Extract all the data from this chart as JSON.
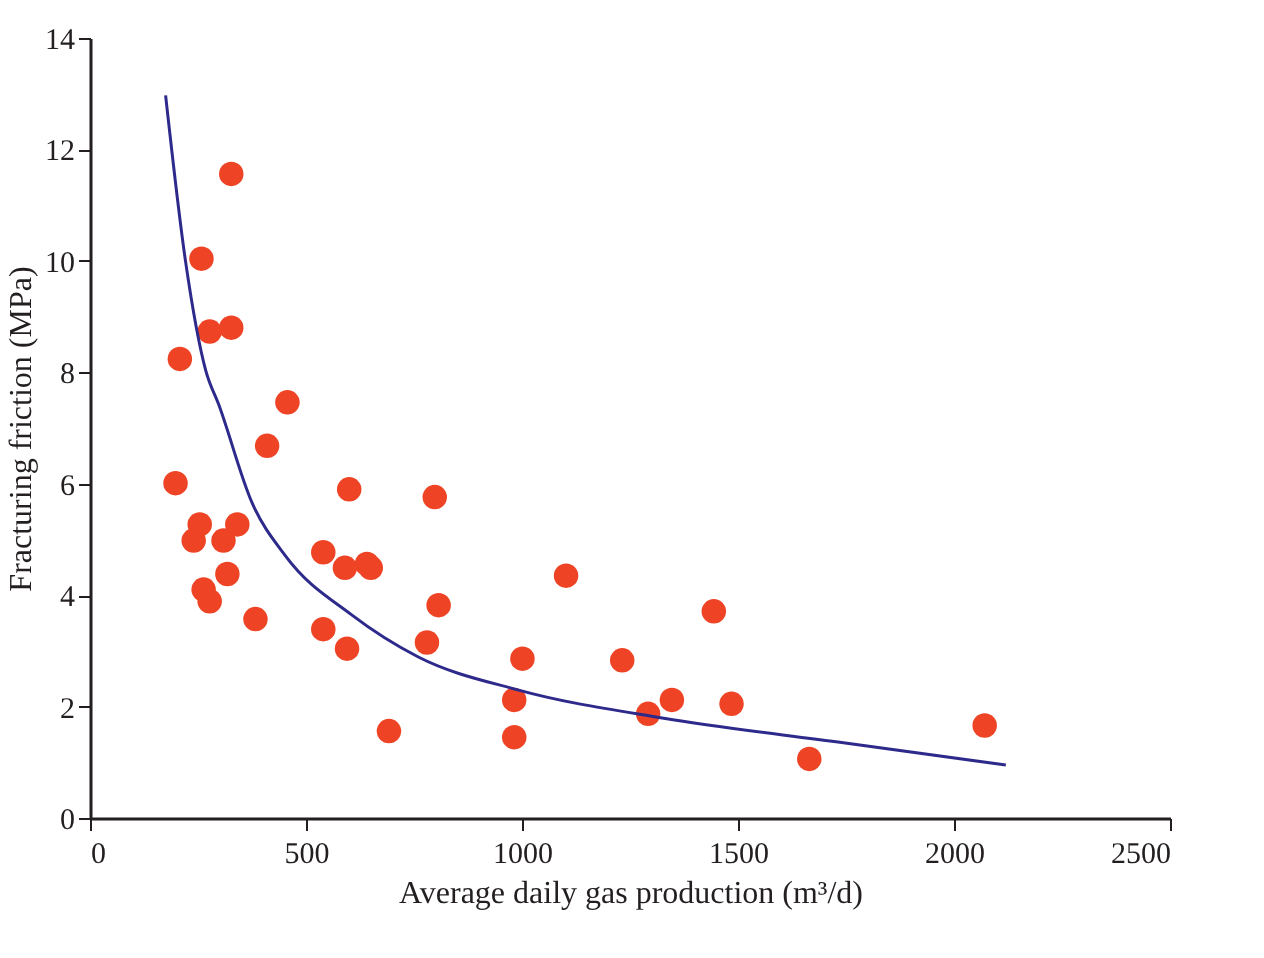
{
  "chart_data": {
    "type": "scatter",
    "xlabel": "Average daily gas production (m³/d)",
    "ylabel": "Fracturing friction (MPa)",
    "xlim": [
      0,
      2500
    ],
    "xticks": [
      0,
      500,
      1000,
      1500,
      2000,
      2500
    ],
    "ylim": [
      0,
      14
    ],
    "yticks": [
      0,
      2,
      4,
      6,
      8,
      10,
      12,
      14
    ],
    "series": [
      {
        "color": "#ee4425",
        "marker": "circle",
        "x": [
          258,
          277,
          327,
          327,
          208,
          457,
          410,
          198,
          600,
          798,
          254,
          341,
          240,
          309,
          540,
          590,
          641,
          650,
          318,
          263,
          277,
          383,
          807,
          540,
          595,
          780,
          1001,
          692,
          982,
          982,
          1102,
          1232,
          1292,
          1347,
          1444,
          1485,
          1665,
          2071
        ],
        "values": [
          10.04,
          8.73,
          11.56,
          8.8,
          8.24,
          7.46,
          6.68,
          6.01,
          5.9,
          5.76,
          5.27,
          5.27,
          4.98,
          4.98,
          4.77,
          4.49,
          4.56,
          4.49,
          4.38,
          4.1,
          3.89,
          3.57,
          3.82,
          3.39,
          3.04,
          3.15,
          2.86,
          1.56,
          2.12,
          1.45,
          4.35,
          2.83,
          1.87,
          2.12,
          3.71,
          2.05,
          1.06,
          1.66
        ]
      },
      {
        "type": "line",
        "color": "#2e2a8c",
        "marker": "none",
        "line_style": "solid",
        "x": [
          175,
          221,
          268,
          298,
          375,
          452,
          605,
          760,
          990,
          1328,
          1744,
          2120
        ],
        "values": [
          12.97,
          10.0,
          8.03,
          7.42,
          5.66,
          4.71,
          3.65,
          2.89,
          2.3,
          1.79,
          1.35,
          0.95
        ]
      }
    ]
  }
}
